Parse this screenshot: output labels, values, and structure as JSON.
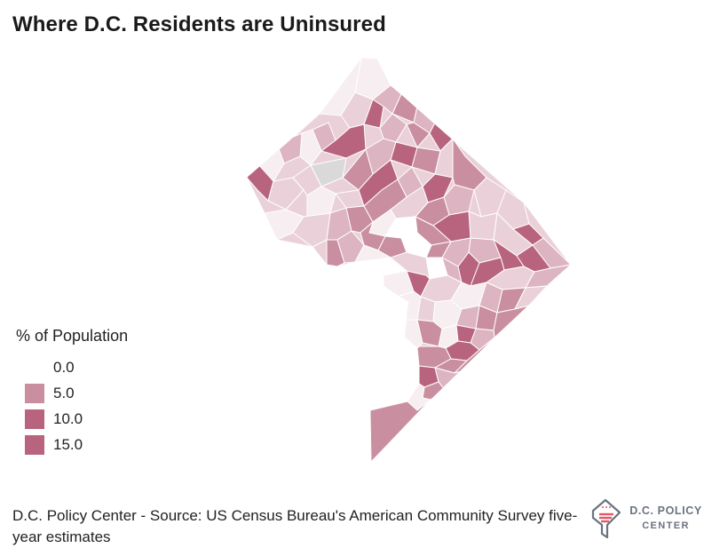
{
  "title": "Where D.C. Residents are Uninsured",
  "legend": {
    "title": "% of Population",
    "items": [
      {
        "label": "0.0",
        "color": "#ffffff"
      },
      {
        "label": "5.0",
        "color": "#c98fa0"
      },
      {
        "label": "10.0",
        "color": "#b8647e"
      },
      {
        "label": "15.0",
        "color": "#b8647e"
      }
    ]
  },
  "colors": {
    "scale": [
      "#f6eef1",
      "#ead1d9",
      "#ddb4c1",
      "#c98fa0",
      "#b8647e"
    ],
    "no_data": "#d9d9d9",
    "boundary": "#ffffff"
  },
  "source": "D.C. Policy Center - Source: US Census Bureau's American Community Survey five-year estimates",
  "logo": {
    "line1": "D.C. POLICY",
    "line2": "CENTER",
    "icon": "dc-flag-map-icon"
  }
}
